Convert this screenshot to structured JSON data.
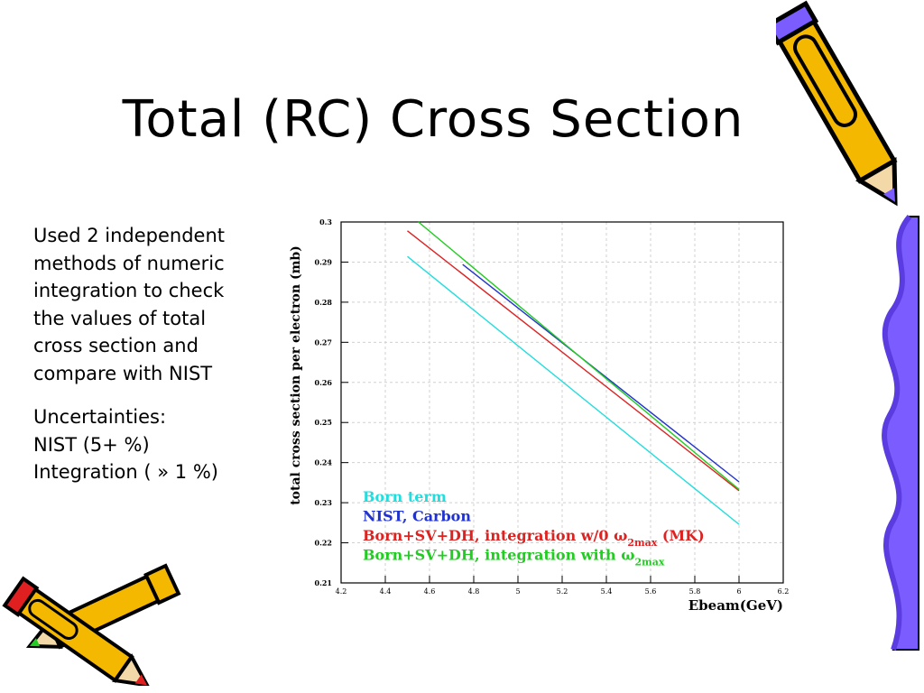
{
  "slide": {
    "title": "Total (RC) Cross Section",
    "bullets": [
      [
        "Used 2 independent",
        "methods of numeric",
        "integration to check",
        "the values of total",
        "cross section and",
        "compare with NIST"
      ],
      [
        "Uncertainties:",
        "NIST (5+ %)",
        "Integration ( » 1 %)"
      ]
    ]
  },
  "chart_data": {
    "type": "line",
    "xlabel": "Ebeam(GeV)",
    "ylabel": "total cross section per electron (mb)",
    "xlim": [
      4.2,
      6.2
    ],
    "ylim": [
      0.21,
      0.3
    ],
    "xticks": [
      4.2,
      4.4,
      4.6,
      4.8,
      5,
      5.2,
      5.4,
      5.6,
      5.8,
      6,
      6.2
    ],
    "xtick_labels": [
      "4.2",
      "4.4",
      "4.6",
      "4.8",
      "5",
      "5.2",
      "5.4",
      "5.6",
      "5.8",
      "6",
      "6.2"
    ],
    "yticks": [
      0.21,
      0.22,
      0.23,
      0.24,
      0.25,
      0.26,
      0.27,
      0.28,
      0.29,
      0.3
    ],
    "ytick_labels": [
      "0.21",
      "0.22",
      "0.23",
      "0.24",
      "0.25",
      "0.26",
      "0.27",
      "0.28",
      "0.29",
      "0.3"
    ],
    "grid": true,
    "legend_position": "bottom-left",
    "series": [
      {
        "name": "Born term",
        "color": "#22dddd",
        "x": [
          4.5,
          6.0
        ],
        "y": [
          0.2914,
          0.2246
        ]
      },
      {
        "name": "NIST, Carbon",
        "color": "#2233cc",
        "x": [
          4.75,
          6.0
        ],
        "y": [
          0.2894,
          0.2352
        ]
      },
      {
        "name": "Born+SV+DH, integration w/0 ω2max (MK)",
        "color": "#dd2222",
        "x": [
          4.5,
          6.0
        ],
        "y": [
          0.2978,
          0.233
        ]
      },
      {
        "name": "Born+SV+DH, integration with ω2max",
        "color": "#22cc22",
        "x": [
          4.55,
          6.0
        ],
        "y": [
          0.3,
          0.2333
        ]
      }
    ],
    "legend": [
      {
        "text": "Born term",
        "color": "#22dddd"
      },
      {
        "text": "NIST, Carbon",
        "color": "#2233cc"
      },
      {
        "text": "Born+SV+DH, integration w/0 ω",
        "sub": "2max",
        "suffix": " (MK)",
        "color": "#dd2222"
      },
      {
        "text": "Born+SV+DH, integration with ω",
        "sub": "2max",
        "suffix": "",
        "color": "#22cc22"
      }
    ]
  }
}
